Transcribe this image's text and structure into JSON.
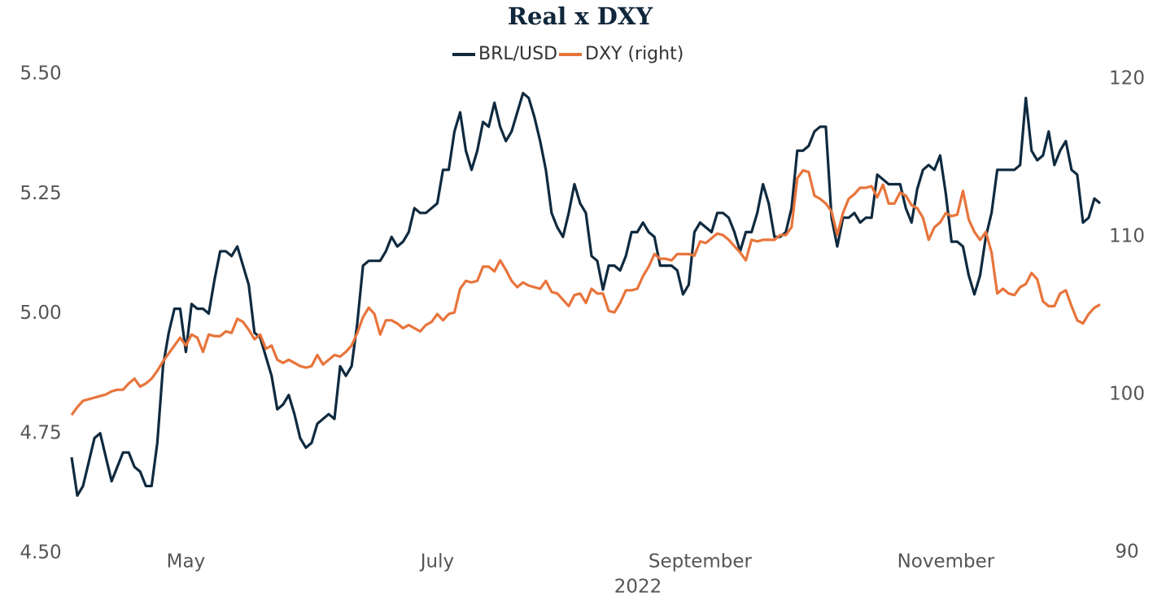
{
  "chart_data": {
    "type": "line",
    "title": "Real x DXY",
    "x_label": "2022",
    "legend": "top",
    "categories": [
      null,
      null,
      null,
      null,
      null,
      null,
      null,
      null,
      null,
      null,
      null,
      null,
      null,
      null,
      null,
      null,
      null,
      null,
      null,
      null,
      "May",
      null,
      null,
      null,
      null,
      null,
      null,
      null,
      null,
      null,
      null,
      null,
      null,
      null,
      null,
      null,
      null,
      null,
      null,
      null,
      null,
      null,
      null,
      null,
      null,
      null,
      null,
      null,
      null,
      null,
      null,
      null,
      null,
      null,
      null,
      null,
      null,
      null,
      null,
      null,
      null,
      null,
      null,
      null,
      "July",
      null,
      null,
      null,
      null,
      null,
      null,
      null,
      null,
      null,
      null,
      null,
      null,
      null,
      null,
      null,
      null,
      null,
      null,
      null,
      null,
      null,
      null,
      null,
      null,
      null,
      null,
      null,
      null,
      null,
      null,
      null,
      null,
      null,
      null,
      null,
      null,
      null,
      null,
      null,
      null,
      null,
      null,
      null,
      null,
      null,
      "September",
      null,
      null,
      null,
      null,
      null,
      null,
      null,
      null,
      null,
      null,
      null,
      null,
      null,
      null,
      null,
      null,
      null,
      null,
      null,
      null,
      null,
      null,
      null,
      null,
      null,
      null,
      null,
      null,
      null,
      null,
      null,
      null,
      null,
      null,
      null,
      null,
      null,
      null,
      null,
      null,
      null,
      null,
      "November",
      null,
      null,
      null,
      null,
      null,
      null,
      null,
      null,
      null,
      null,
      null,
      null,
      null,
      null,
      null,
      null,
      null,
      null,
      null,
      null,
      null,
      null,
      null,
      null,
      null,
      null,
      null
    ],
    "series": [
      {
        "name": "BRL/USD",
        "color": "#0f2a3f",
        "values": [
          4.7,
          4.62,
          4.64,
          4.69,
          4.74,
          4.75,
          4.7,
          4.65,
          4.68,
          4.71,
          4.71,
          4.68,
          4.67,
          4.64,
          4.64,
          4.73,
          4.89,
          4.96,
          5.01,
          5.01,
          4.92,
          5.02,
          5.01,
          5.01,
          5.0,
          5.07,
          5.13,
          5.13,
          5.12,
          5.14,
          5.1,
          5.06,
          4.96,
          4.95,
          4.91,
          4.87,
          4.8,
          4.81,
          4.83,
          4.79,
          4.74,
          4.72,
          4.73,
          4.77,
          4.78,
          4.79,
          4.78,
          4.89,
          4.87,
          4.89,
          4.98,
          5.1,
          5.11,
          5.11,
          5.11,
          5.13,
          5.16,
          5.14,
          5.15,
          5.17,
          5.22,
          5.21,
          5.21,
          5.22,
          5.23,
          5.3,
          5.3,
          5.38,
          5.42,
          5.34,
          5.3,
          5.34,
          5.4,
          5.39,
          5.44,
          5.39,
          5.36,
          5.38,
          5.42,
          5.46,
          5.45,
          5.41,
          5.36,
          5.3,
          5.21,
          5.18,
          5.16,
          5.21,
          5.27,
          5.23,
          5.21,
          5.12,
          5.11,
          5.05,
          5.1,
          5.1,
          5.09,
          5.12,
          5.17,
          5.17,
          5.19,
          5.17,
          5.16,
          5.1,
          5.1,
          5.1,
          5.09,
          5.04,
          5.06,
          5.17,
          5.19,
          5.18,
          5.17,
          5.21,
          5.21,
          5.2,
          5.17,
          5.13,
          5.17,
          5.17,
          5.21,
          5.27,
          5.23,
          5.16,
          5.16,
          5.17,
          5.22,
          5.34,
          5.34,
          5.35,
          5.38,
          5.39,
          5.39,
          5.2,
          5.14,
          5.2,
          5.2,
          5.21,
          5.19,
          5.2,
          5.2,
          5.29,
          5.28,
          5.27,
          5.27,
          5.27,
          5.22,
          5.19,
          5.26,
          5.3,
          5.31,
          5.3,
          5.33,
          5.25,
          5.15,
          5.15,
          5.14,
          5.08,
          5.04,
          5.08,
          5.16,
          5.21,
          5.3,
          5.3,
          5.3,
          5.3,
          5.31,
          5.45,
          5.34,
          5.32,
          5.33,
          5.38,
          5.31,
          5.34,
          5.36,
          5.3,
          5.29,
          5.19,
          5.2,
          5.24,
          5.23
        ]
      },
      {
        "name": "DXY (right)",
        "color": "#e8743b",
        "axis": "y2",
        "values": [
          98.7,
          99.2,
          99.6,
          99.7,
          99.8,
          99.9,
          100.0,
          100.2,
          100.3,
          100.3,
          100.7,
          101.0,
          100.5,
          100.7,
          101.0,
          101.5,
          102.1,
          102.6,
          103.1,
          103.6,
          103.1,
          103.8,
          103.6,
          102.7,
          103.8,
          103.7,
          103.7,
          104.0,
          103.9,
          104.8,
          104.6,
          104.1,
          103.5,
          103.8,
          102.9,
          103.1,
          102.2,
          102.0,
          102.2,
          102.0,
          101.8,
          101.7,
          101.8,
          102.5,
          101.9,
          102.2,
          102.5,
          102.4,
          102.7,
          103.1,
          103.9,
          104.9,
          105.5,
          105.1,
          103.8,
          104.7,
          104.7,
          104.5,
          104.2,
          104.4,
          104.2,
          104.0,
          104.4,
          104.6,
          105.1,
          104.7,
          105.1,
          105.2,
          106.7,
          107.2,
          107.1,
          107.2,
          108.1,
          108.1,
          107.8,
          108.5,
          107.9,
          107.2,
          106.8,
          107.1,
          106.9,
          106.8,
          106.7,
          107.2,
          106.5,
          106.4,
          106.0,
          105.6,
          106.3,
          106.4,
          105.8,
          106.7,
          106.4,
          106.4,
          105.3,
          105.2,
          105.8,
          106.6,
          106.6,
          106.7,
          107.5,
          108.1,
          108.9,
          108.6,
          108.6,
          108.5,
          108.9,
          108.9,
          108.9,
          108.8,
          109.7,
          109.6,
          109.9,
          110.2,
          110.1,
          109.8,
          109.4,
          109.0,
          108.5,
          109.8,
          109.7,
          109.8,
          109.8,
          109.8,
          110.1,
          110.1,
          110.6,
          113.7,
          114.2,
          114.1,
          112.6,
          112.4,
          112.1,
          111.6,
          110.1,
          111.5,
          112.4,
          112.7,
          113.1,
          113.1,
          113.2,
          112.5,
          113.3,
          112.1,
          112.1,
          112.8,
          112.6,
          112.0,
          111.8,
          111.2,
          109.8,
          110.6,
          110.9,
          111.5,
          111.3,
          111.4,
          112.9,
          111.1,
          110.3,
          109.8,
          110.3,
          109.0,
          106.4,
          106.7,
          106.4,
          106.3,
          106.8,
          107.0,
          107.7,
          107.3,
          105.9,
          105.6,
          105.6,
          106.4,
          106.6,
          105.6,
          104.7,
          104.5,
          105.1,
          105.5,
          105.7
        ]
      }
    ],
    "ylim": [
      4.5,
      5.5
    ],
    "yticks": [
      {
        "value": 4.5,
        "label": "4.50"
      },
      4.75,
      {
        "value": 5,
        "label": "5.00"
      },
      5.25,
      {
        "value": 5.5,
        "label": "5.50"
      }
    ],
    "y2lim": [
      90,
      120
    ],
    "y2ticks": [
      90,
      100,
      110,
      120
    ],
    "grid": false
  }
}
